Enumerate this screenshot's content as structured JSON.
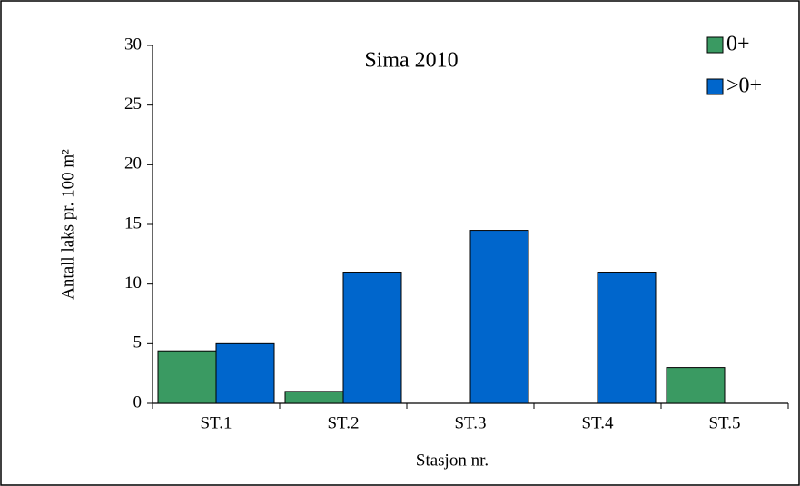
{
  "chart_data": {
    "type": "bar",
    "title": "Sima 2010",
    "x_label": "Stasjon nr.",
    "y_label": "Antall laks pr. 100 m²",
    "categories": [
      "ST.1",
      "ST.2",
      "ST.3",
      "ST.4",
      "ST.5"
    ],
    "series": [
      {
        "name": "0+",
        "color": "#3a9a62",
        "values": [
          4.4,
          1,
          0,
          0,
          3
        ]
      },
      {
        "name": ">0+",
        "color": "#0066cc",
        "values": [
          5,
          11,
          14.5,
          11,
          0
        ]
      }
    ],
    "ylim": [
      0,
      30
    ],
    "yticks": [
      0,
      5,
      10,
      15,
      20,
      25,
      30
    ],
    "grid": false,
    "legend": "top-right"
  }
}
